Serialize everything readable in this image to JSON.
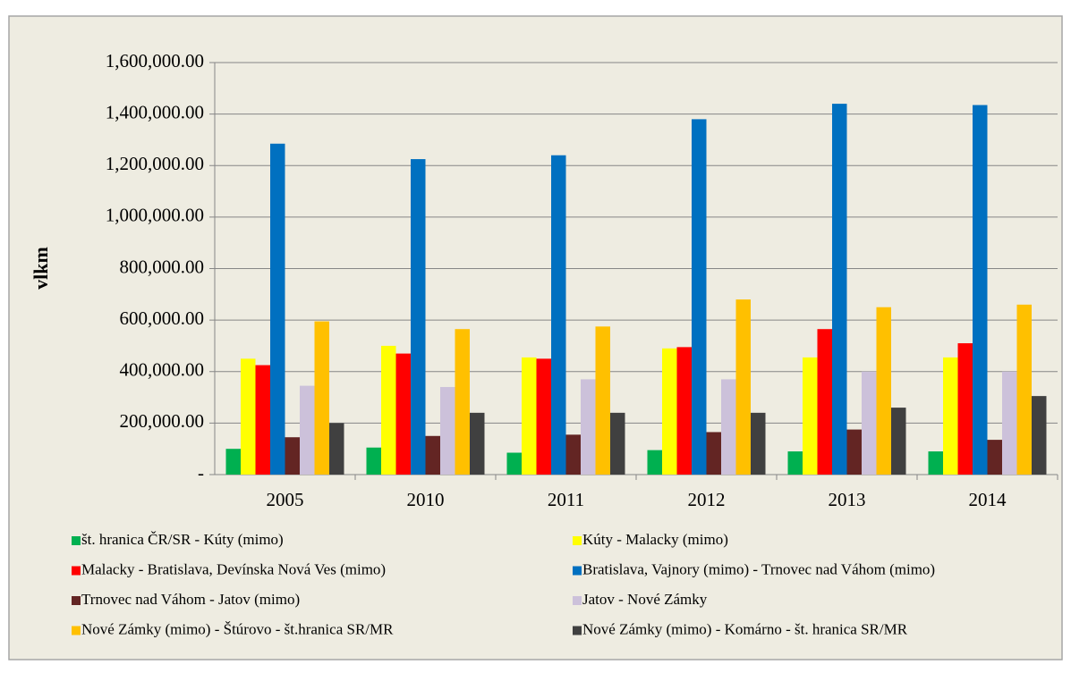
{
  "chart_data": {
    "type": "bar",
    "y_label": "vlkm",
    "categories": [
      "2005",
      "2010",
      "2011",
      "2012",
      "2013",
      "2014"
    ],
    "series": [
      {
        "name": "št. hranica ČR/SR - Kúty (mimo)",
        "color": "#00b050",
        "values": [
          100000,
          105000,
          85000,
          95000,
          90000,
          90000
        ]
      },
      {
        "name": "Kúty - Malacky (mimo)",
        "color": "#ffff00",
        "values": [
          450000,
          500000,
          455000,
          490000,
          455000,
          455000
        ]
      },
      {
        "name": "Malacky - Bratislava, Devínska Nová Ves (mimo)",
        "color": "#ff0000",
        "values": [
          425000,
          470000,
          450000,
          495000,
          565000,
          510000
        ]
      },
      {
        "name": "Bratislava, Vajnory (mimo) - Trnovec nad Váhom (mimo)",
        "color": "#0070c0",
        "values": [
          1285000,
          1225000,
          1240000,
          1380000,
          1440000,
          1435000
        ]
      },
      {
        "name": "Trnovec nad Váhom - Jatov (mimo)",
        "color": "#632523",
        "values": [
          145000,
          150000,
          155000,
          165000,
          175000,
          135000
        ]
      },
      {
        "name": "Jatov - Nové Zámky",
        "color": "#ccc1da",
        "values": [
          345000,
          340000,
          370000,
          370000,
          400000,
          400000
        ]
      },
      {
        "name": "Nové Zámky (mimo) - Štúrovo - št.hranica SR/MR",
        "color": "#ffc000",
        "values": [
          595000,
          565000,
          575000,
          680000,
          650000,
          660000
        ]
      },
      {
        "name": "Nové Zámky (mimo) - Komárno - št. hranica SR/MR",
        "color": "#404040",
        "values": [
          200000,
          240000,
          240000,
          240000,
          260000,
          305000
        ]
      }
    ],
    "ylim": [
      0,
      1600000
    ],
    "yticks": [
      {
        "value": 0,
        "label": "-"
      },
      {
        "value": 200000,
        "label": "200,000.00"
      },
      {
        "value": 400000,
        "label": "400,000.00"
      },
      {
        "value": 600000,
        "label": "600,000.00"
      },
      {
        "value": 800000,
        "label": "800,000.00"
      },
      {
        "value": 1000000,
        "label": "1,000,000.00"
      },
      {
        "value": 1200000,
        "label": "1,200,000.00"
      },
      {
        "value": 1400000,
        "label": "1,400,000.00"
      },
      {
        "value": 1600000,
        "label": "1,600,000.00"
      }
    ],
    "grid": true,
    "legend": "bottom"
  }
}
